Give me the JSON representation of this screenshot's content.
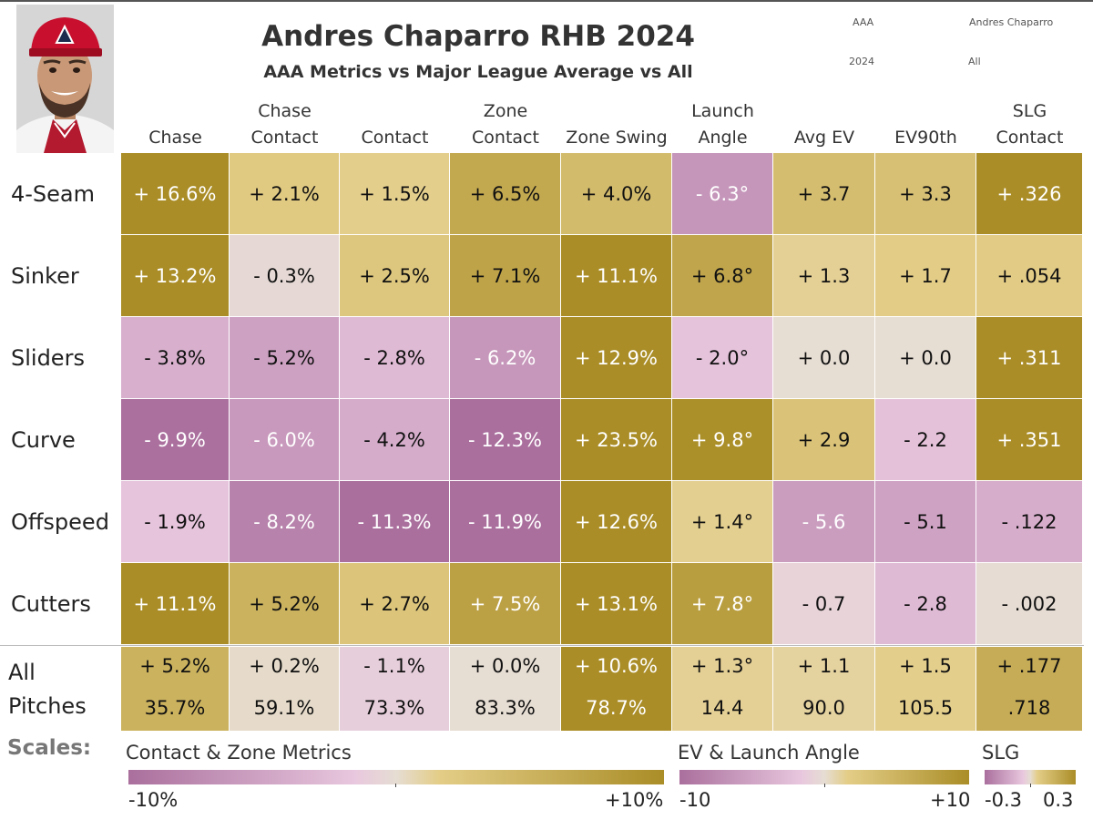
{
  "header": {
    "title": "Andres Chaparro RHB 2024",
    "subtitle": "AAA Metrics vs Major League Average vs All",
    "filters": [
      {
        "value": "AAA"
      },
      {
        "value": "Andres Chaparro"
      },
      {
        "value": "2024"
      },
      {
        "value": "All"
      }
    ]
  },
  "colors": {
    "neg_strong": "#aa6f9d",
    "neg_light": "#e8c7de",
    "neutral": "#e6ddd3",
    "pos_light": "#e3cd87",
    "pos_strong": "#aa8d27"
  },
  "chart_data": {
    "type": "table",
    "columns": [
      {
        "lines": [
          "Chase"
        ]
      },
      {
        "lines": [
          "Chase",
          "Contact"
        ]
      },
      {
        "lines": [
          "Contact"
        ]
      },
      {
        "lines": [
          "Zone",
          "Contact"
        ]
      },
      {
        "lines": [
          "Zone Swing"
        ]
      },
      {
        "lines": [
          "Launch",
          "Angle"
        ]
      },
      {
        "lines": [
          "Avg EV"
        ]
      },
      {
        "lines": [
          "EV90th"
        ]
      },
      {
        "lines": [
          "SLG",
          "Contact"
        ]
      }
    ],
    "column_scale": [
      "pct",
      "pct",
      "pct",
      "pct",
      "pct",
      "ev",
      "ev",
      "ev",
      "slg"
    ],
    "rows": [
      {
        "label": "4-Seam",
        "values": [
          16.6,
          2.1,
          1.5,
          6.5,
          4.0,
          -6.3,
          3.7,
          3.3,
          0.326
        ],
        "display": [
          "+ 16.6%",
          "+ 2.1%",
          "+ 1.5%",
          "+ 6.5%",
          "+ 4.0%",
          "- 6.3°",
          "+ 3.7",
          "+ 3.3",
          "+ .326"
        ]
      },
      {
        "label": "Sinker",
        "values": [
          13.2,
          -0.3,
          2.5,
          7.1,
          11.1,
          6.8,
          1.3,
          1.7,
          0.054
        ],
        "display": [
          "+ 13.2%",
          "- 0.3%",
          "+ 2.5%",
          "+ 7.1%",
          "+ 11.1%",
          "+ 6.8°",
          "+ 1.3",
          "+ 1.7",
          "+ .054"
        ]
      },
      {
        "label": "Sliders",
        "values": [
          -3.8,
          -5.2,
          -2.8,
          -6.2,
          12.9,
          -2.0,
          0.0,
          0.0,
          0.311
        ],
        "display": [
          "- 3.8%",
          "- 5.2%",
          "- 2.8%",
          "- 6.2%",
          "+ 12.9%",
          "- 2.0°",
          "+ 0.0",
          "+ 0.0",
          "+ .311"
        ]
      },
      {
        "label": "Curve",
        "values": [
          -9.9,
          -6.0,
          -4.2,
          -12.3,
          23.5,
          9.8,
          2.9,
          -2.2,
          0.351
        ],
        "display": [
          "- 9.9%",
          "- 6.0%",
          "- 4.2%",
          "- 12.3%",
          "+ 23.5%",
          "+ 9.8°",
          "+ 2.9",
          "- 2.2",
          "+ .351"
        ]
      },
      {
        "label": "Offspeed",
        "values": [
          -1.9,
          -8.2,
          -11.3,
          -11.9,
          12.6,
          1.4,
          -5.6,
          -5.1,
          -0.122
        ],
        "display": [
          "- 1.9%",
          "- 8.2%",
          "- 11.3%",
          "- 11.9%",
          "+ 12.6%",
          "+ 1.4°",
          "- 5.6",
          "- 5.1",
          "- .122"
        ]
      },
      {
        "label": "Cutters",
        "values": [
          11.1,
          5.2,
          2.7,
          7.5,
          13.1,
          7.8,
          -0.7,
          -2.8,
          -0.002
        ],
        "display": [
          "+ 11.1%",
          "+ 5.2%",
          "+ 2.7%",
          "+ 7.5%",
          "+ 13.1%",
          "+ 7.8°",
          "- 0.7",
          "- 2.8",
          "- .002"
        ]
      }
    ],
    "all_pitches": {
      "label_lines": [
        "All",
        "Pitches"
      ],
      "values": [
        5.2,
        0.2,
        -1.1,
        0.0,
        10.6,
        1.3,
        1.1,
        1.5,
        0.177
      ],
      "display": [
        "+ 5.2%",
        "+ 0.2%",
        "- 1.1%",
        "+ 0.0%",
        "+ 10.6%",
        "+ 1.3°",
        "+ 1.1",
        "+ 1.5",
        "+ .177"
      ],
      "totals": [
        "35.7%",
        "59.1%",
        "73.3%",
        "83.3%",
        "78.7%",
        "14.4",
        "90.0",
        "105.5",
        ".718"
      ]
    },
    "scales": {
      "label": "Scales:",
      "pct": {
        "title": "Contact & Zone Metrics",
        "min": -10,
        "max": 10,
        "min_label": "-10%",
        "max_label": "+10%"
      },
      "ev": {
        "title": "EV & Launch Angle",
        "min": -10,
        "max": 10,
        "min_label": "-10",
        "max_label": "+10"
      },
      "slg": {
        "title": "SLG",
        "min": -0.3,
        "max": 0.3,
        "min_label": "-0.3",
        "max_label": "0.3"
      }
    }
  }
}
